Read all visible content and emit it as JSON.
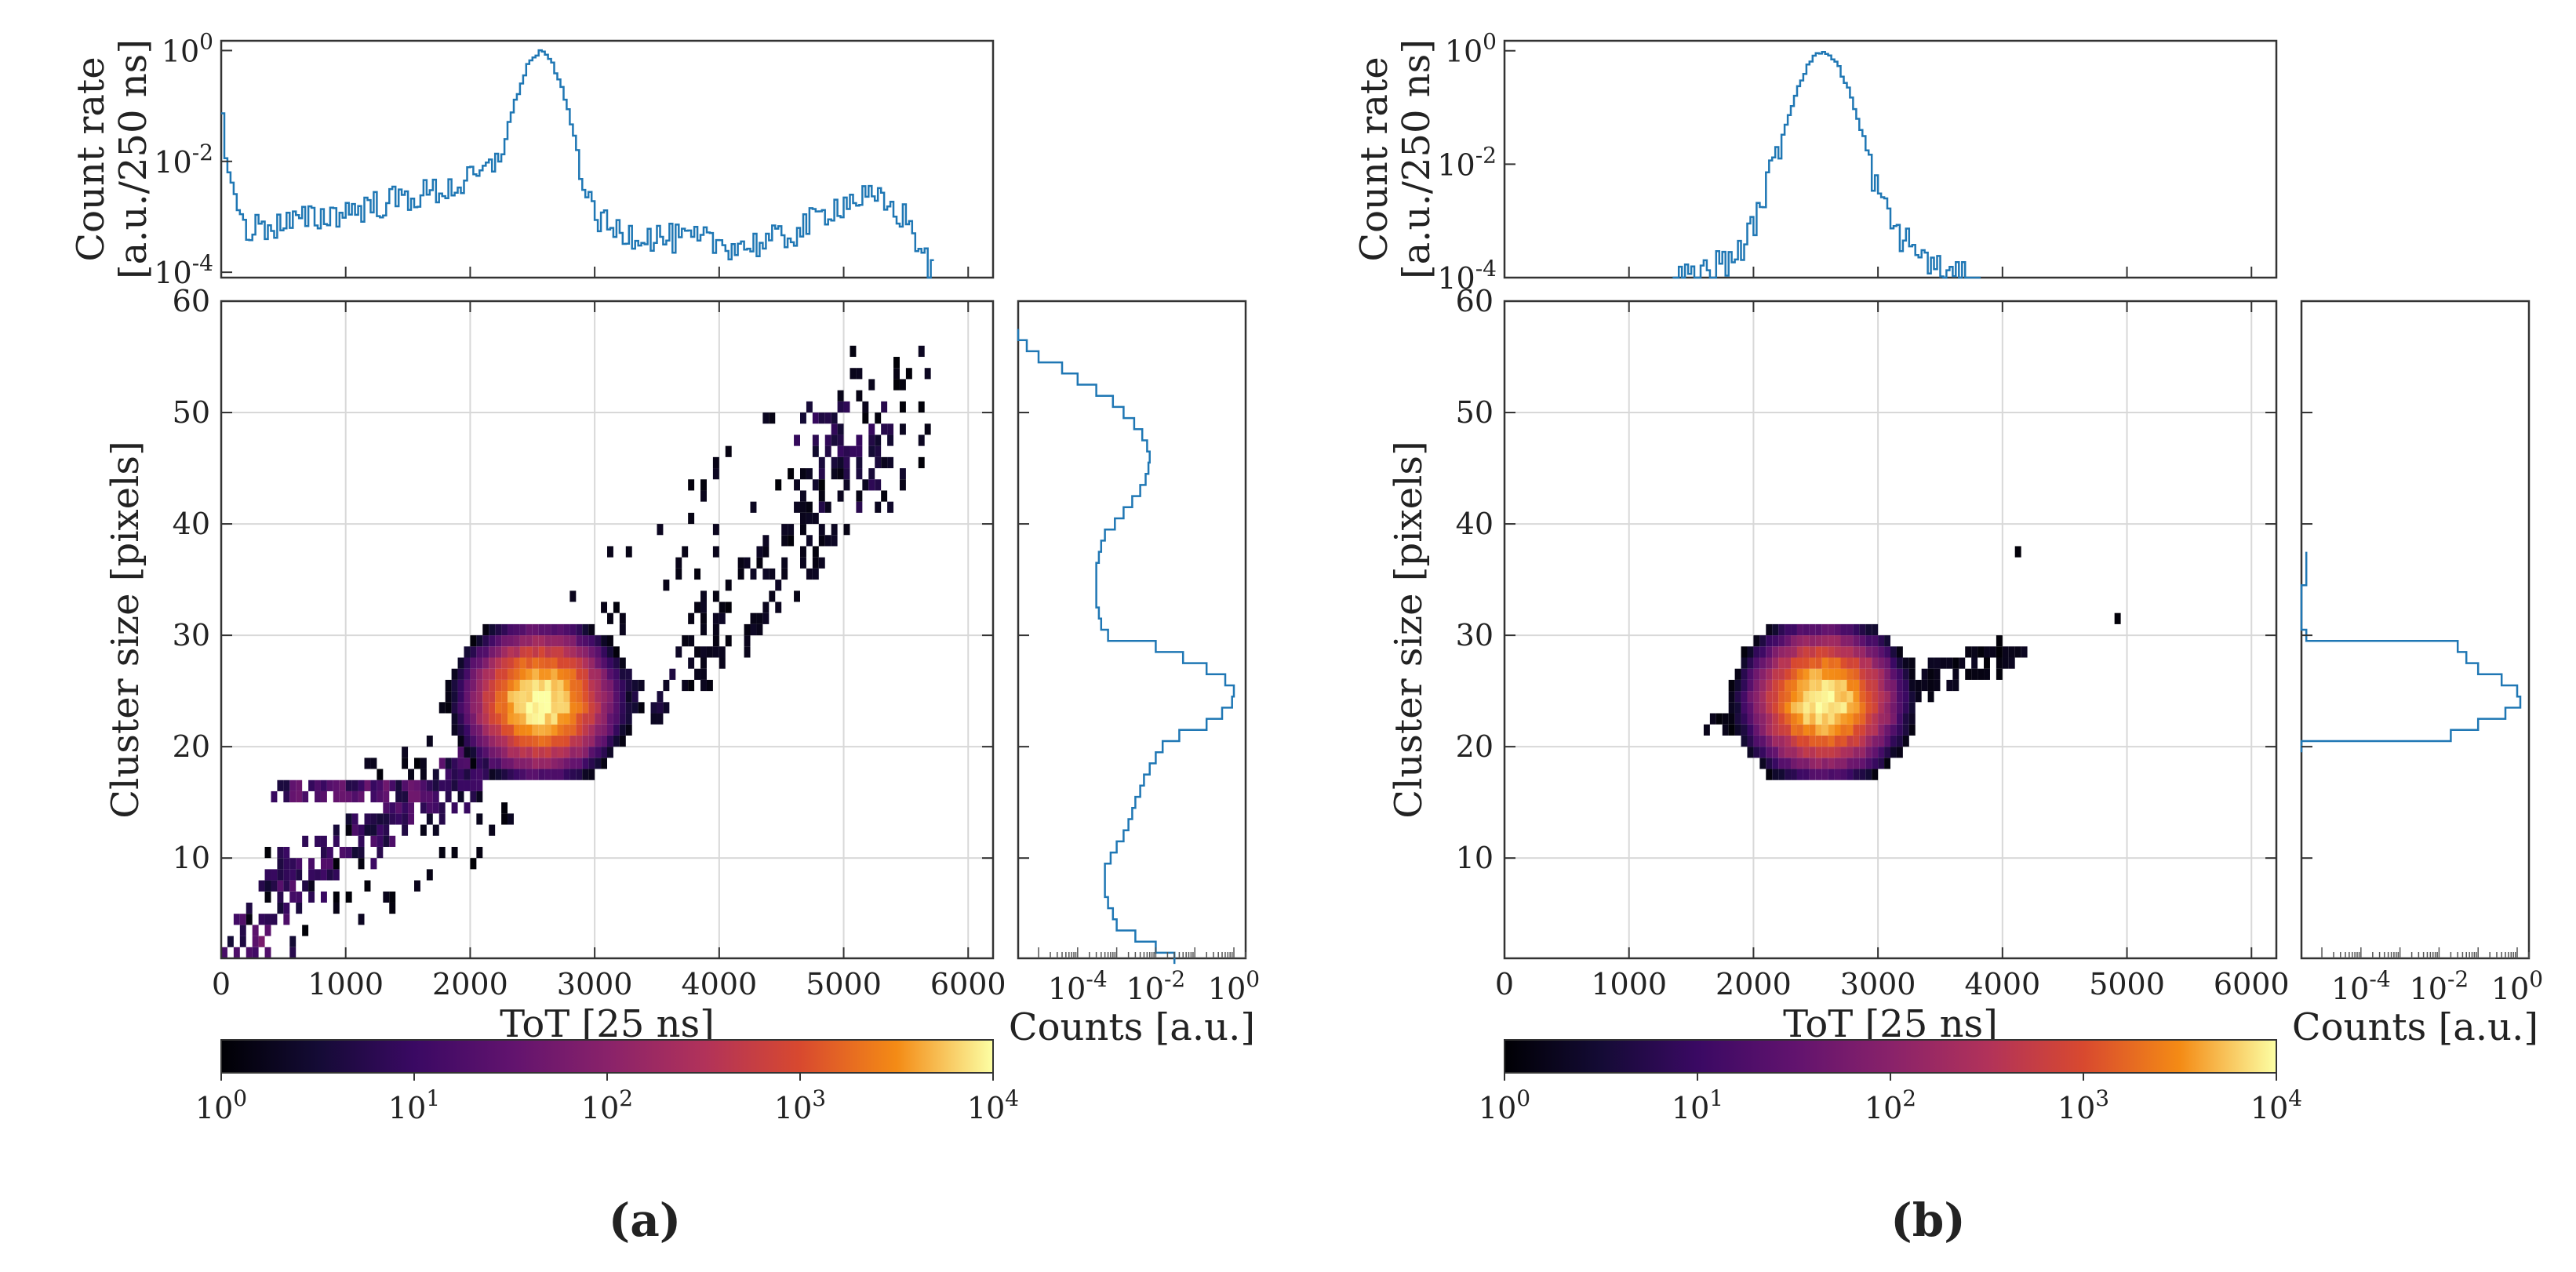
{
  "figure": {
    "panels": [
      {
        "id": "a",
        "caption": "(a)"
      },
      {
        "id": "b",
        "caption": "(b)"
      }
    ],
    "colormap": "inferno"
  },
  "chart_data": [
    {
      "panel": "a",
      "type": "heatmap",
      "title": "",
      "xlabel": "ToT [25 ns]",
      "ylabel": "Cluster size [pixels]",
      "xlim": [
        0,
        6200
      ],
      "ylim": [
        1,
        60
      ],
      "xticks": [
        0,
        1000,
        2000,
        3000,
        4000,
        5000,
        6000
      ],
      "yticks": [
        10,
        20,
        30,
        40,
        50,
        60
      ],
      "grid": true,
      "colorbar": {
        "scale": "log",
        "range": [
          1,
          10000
        ],
        "ticks": [
          "10^0",
          "10^1",
          "10^2",
          "10^3",
          "10^4"
        ],
        "colormap": "inferno"
      },
      "features": [
        {
          "kind": "peak",
          "x_center": 2550,
          "y_center": 24,
          "x_spread": 280,
          "y_spread": 3,
          "peak_log10_counts": 4
        },
        {
          "kind": "band",
          "from": [
            150,
            3
          ],
          "to": [
            2400,
            22
          ],
          "width": 2,
          "log10_counts": 1.2
        },
        {
          "kind": "band",
          "from": [
            250,
            8
          ],
          "to": [
            2100,
            17
          ],
          "width": 1.5,
          "log10_counts": 0.9
        },
        {
          "kind": "band",
          "from": [
            400,
            16
          ],
          "to": [
            1700,
            16
          ],
          "width": 1,
          "log10_counts": 1.4
        },
        {
          "kind": "band",
          "from": [
            2700,
            23
          ],
          "to": [
            3600,
            25
          ],
          "width": 2,
          "log10_counts": 0.6
        },
        {
          "kind": "band",
          "from": [
            3700,
            27
          ],
          "to": [
            5000,
            42
          ],
          "width": 4,
          "log10_counts": 0.3
        },
        {
          "kind": "cluster",
          "x_center": 5000,
          "y_center": 46,
          "x_spread": 350,
          "y_spread": 4,
          "log10_counts": 0.8
        },
        {
          "kind": "cluster",
          "x_center": 300,
          "y_center": 1.5,
          "x_spread": 250,
          "y_spread": 1,
          "log10_counts": 1.5
        },
        {
          "kind": "scatter",
          "x_range": [
            200,
            5800
          ],
          "y_range": [
            3,
            56
          ],
          "density": 0.15
        }
      ],
      "top_histogram": {
        "type": "line",
        "ylabel": "Count rate\n[a.u./250 ns]",
        "yscale": "log",
        "ylim": [
          8e-05,
          1.5
        ],
        "yticks": [
          "10^0",
          "10^-2",
          "10^-4"
        ],
        "x": [
          0,
          30,
          100,
          200,
          400,
          600,
          800,
          1000,
          1200,
          1400,
          1600,
          1800,
          2000,
          2150,
          2250,
          2350,
          2450,
          2550,
          2650,
          2750,
          2850,
          2950,
          3100,
          3300,
          3600,
          3900,
          4200,
          4500,
          4700,
          4900,
          5100,
          5300,
          5500,
          5600,
          5650,
          5700
        ],
        "values": [
          0.08,
          0.01,
          0.0018,
          0.0006,
          0.0007,
          0.0008,
          0.001,
          0.0013,
          0.0016,
          0.002,
          0.0025,
          0.0032,
          0.0045,
          0.007,
          0.02,
          0.12,
          0.55,
          1.0,
          0.6,
          0.14,
          0.015,
          0.0015,
          0.0006,
          0.0005,
          0.0004,
          0.00035,
          0.0003,
          0.0004,
          0.0007,
          0.0015,
          0.0022,
          0.0018,
          0.0009,
          0.0003,
          0.00015,
          0.0001
        ]
      },
      "right_histogram": {
        "type": "line",
        "xlabel": "Counts [a.u.]",
        "xscale": "log",
        "xlim": [
          3e-06,
          2
        ],
        "xticks": [
          "10^-4",
          "10^-2",
          "10^0"
        ],
        "y": [
          57,
          56,
          55,
          54,
          53,
          52,
          51,
          50,
          49,
          48,
          47,
          46,
          45,
          44,
          43,
          42,
          41,
          40,
          39,
          38,
          37,
          36,
          35,
          34,
          33,
          32,
          31,
          30,
          29,
          28,
          27,
          26,
          25,
          24,
          23,
          22,
          21,
          20,
          19,
          18,
          17,
          16,
          15,
          14,
          13,
          12,
          11,
          10,
          9,
          8,
          7,
          6,
          5,
          4,
          3,
          2,
          1
        ],
        "values": [
          3e-06,
          5e-06,
          1e-05,
          4e-05,
          0.0001,
          0.0003,
          0.0008,
          0.0015,
          0.0028,
          0.0045,
          0.006,
          0.007,
          0.0065,
          0.0055,
          0.004,
          0.0025,
          0.0015,
          0.0009,
          0.0005,
          0.0004,
          0.00035,
          0.0003,
          0.0003,
          0.0003,
          0.0003,
          0.00035,
          0.0004,
          0.0006,
          0.01,
          0.05,
          0.2,
          0.6,
          1.0,
          0.9,
          0.5,
          0.2,
          0.04,
          0.015,
          0.01,
          0.007,
          0.005,
          0.004,
          0.003,
          0.0025,
          0.002,
          0.0015,
          0.001,
          0.0007,
          0.0005,
          0.0005,
          0.0005,
          0.0006,
          0.0008,
          0.001,
          0.003,
          0.01,
          0.03
        ]
      }
    },
    {
      "panel": "b",
      "type": "heatmap",
      "title": "",
      "xlabel": "ToT [25 ns]",
      "ylabel": "Cluster size [pixels]",
      "xlim": [
        0,
        6200
      ],
      "ylim": [
        1,
        60
      ],
      "xticks": [
        0,
        1000,
        2000,
        3000,
        4000,
        5000,
        6000
      ],
      "yticks": [
        10,
        20,
        30,
        40,
        50,
        60
      ],
      "grid": true,
      "colorbar": {
        "scale": "log",
        "range": [
          1,
          10000
        ],
        "ticks": [
          "10^0",
          "10^1",
          "10^2",
          "10^3",
          "10^4"
        ],
        "colormap": "inferno"
      },
      "features": [
        {
          "kind": "peak",
          "x_center": 2550,
          "y_center": 24,
          "x_spread": 280,
          "y_spread": 3,
          "peak_log10_counts": 4
        },
        {
          "kind": "scatter",
          "x_range": [
            1600,
            4200
          ],
          "y_range": [
            21,
            29
          ],
          "density": 0.35
        },
        {
          "kind": "point",
          "x": 4100,
          "y": 37
        },
        {
          "kind": "point",
          "x": 4900,
          "y": 31
        },
        {
          "kind": "point",
          "x": 3950,
          "y": 29.5
        }
      ],
      "top_histogram": {
        "type": "line",
        "ylabel": "Count rate\n[a.u./250 ns]",
        "yscale": "log",
        "ylim": [
          0.0001,
          1.5
        ],
        "yticks": [
          "10^0",
          "10^-2",
          "10^-4"
        ],
        "x": [
          1350,
          1500,
          1650,
          1800,
          1950,
          2050,
          2150,
          2250,
          2350,
          2450,
          2550,
          2650,
          2750,
          2850,
          2950,
          3050,
          3150,
          3300,
          3450,
          3600,
          3800
        ],
        "values": [
          0.0001,
          0.0001,
          0.00015,
          0.0002,
          0.0005,
          0.002,
          0.01,
          0.05,
          0.25,
          0.7,
          1.0,
          0.65,
          0.22,
          0.04,
          0.006,
          0.0015,
          0.0006,
          0.0003,
          0.00015,
          0.0001,
          0.0001
        ]
      },
      "right_histogram": {
        "type": "line",
        "xlabel": "Counts [a.u.]",
        "xscale": "log",
        "xlim": [
          3e-06,
          2
        ],
        "xticks": [
          "10^-4",
          "10^-2",
          "10^0"
        ],
        "y": [
          37,
          36,
          35,
          34,
          33,
          32,
          31,
          30,
          29,
          28,
          27,
          26,
          25,
          24,
          23,
          22,
          21,
          20
        ],
        "values": [
          4e-06,
          4e-06,
          4e-06,
          3e-06,
          3e-06,
          3e-06,
          3e-06,
          4e-06,
          0.03,
          0.05,
          0.1,
          0.4,
          1.0,
          1.2,
          0.5,
          0.1,
          0.02,
          3e-06
        ]
      }
    }
  ]
}
